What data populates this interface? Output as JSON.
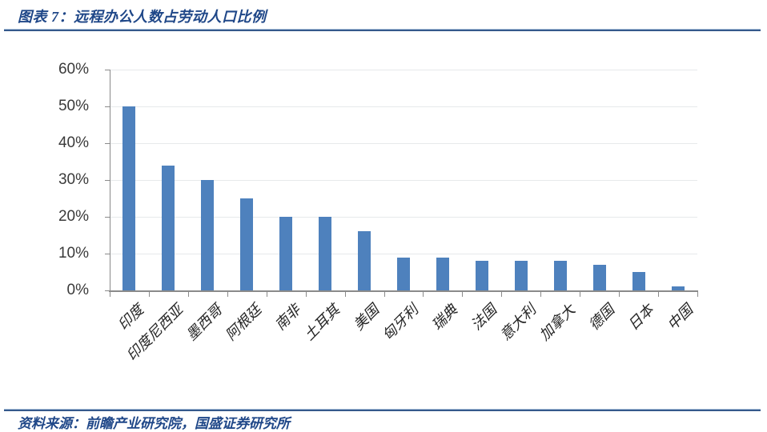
{
  "page": {
    "title": "图表 7：远程办公人数占劳动人口比例",
    "source": "资料来源：前瞻产业研究院，国盛证券研究所"
  },
  "colors": {
    "bar": "#4E81BD",
    "heading_text": "#1F4788",
    "divider": "#35598C"
  },
  "chart_data": {
    "type": "bar",
    "title": "远程办公人数占劳动人口比例",
    "categories": [
      "印度",
      "印度尼西亚",
      "墨西哥",
      "阿根廷",
      "南非",
      "土耳其",
      "美国",
      "匈牙利",
      "瑞典",
      "法国",
      "意大利",
      "加拿大",
      "德国",
      "日本",
      "中国"
    ],
    "values": [
      50,
      34,
      30,
      25,
      20,
      20,
      16,
      9,
      9,
      8,
      8,
      8,
      7,
      5,
      1
    ],
    "unit": "%",
    "xlabel": "",
    "ylabel": "",
    "ylim": [
      0,
      60
    ],
    "yticks": [
      "0%",
      "10%",
      "20%",
      "30%",
      "40%",
      "50%",
      "60%"
    ],
    "grid": true,
    "legend": "none",
    "bar_color": "#4E81BD"
  }
}
